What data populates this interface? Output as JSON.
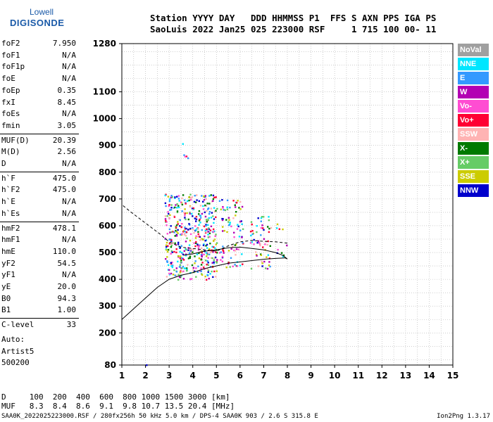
{
  "logo": {
    "line1": "Lowell",
    "line2": "DIGISONDE"
  },
  "header": {
    "line1": "Station YYYY DAY   DDD HHMMSS P1  FFS S AXN PPS IGA PS",
    "line2": "SaoLuis 2022 Jan25 025 223000 RSF     1 715 100 00- 11"
  },
  "params": [
    {
      "k": "foF2",
      "v": "7.950"
    },
    {
      "k": "foF1",
      "v": "N/A"
    },
    {
      "k": "foF1p",
      "v": "N/A"
    },
    {
      "k": "foE",
      "v": "N/A"
    },
    {
      "k": "foEp",
      "v": "0.35"
    },
    {
      "k": "fxI",
      "v": "8.45"
    },
    {
      "k": "foEs",
      "v": "N/A"
    },
    {
      "k": "fmin",
      "v": "3.05"
    },
    {
      "k": "MUF(D)",
      "v": "20.39"
    },
    {
      "k": "M(D)",
      "v": "2.56"
    },
    {
      "k": "D",
      "v": "N/A"
    },
    {
      "k": "h`F",
      "v": "475.0"
    },
    {
      "k": "h`F2",
      "v": "475.0"
    },
    {
      "k": "h`E",
      "v": "N/A"
    },
    {
      "k": "h`Es",
      "v": "N/A"
    },
    {
      "k": "hmF2",
      "v": "478.1"
    },
    {
      "k": "hmF1",
      "v": "N/A"
    },
    {
      "k": "hmE",
      "v": "110.0"
    },
    {
      "k": "yF2",
      "v": "54.5"
    },
    {
      "k": "yF1",
      "v": "N/A"
    },
    {
      "k": "yE",
      "v": "20.0"
    },
    {
      "k": "B0",
      "v": "94.3"
    },
    {
      "k": "B1",
      "v": "1.00"
    },
    {
      "k": "C-level",
      "v": "33"
    }
  ],
  "auto": {
    "line1": "Auto:",
    "line2": "Artist5",
    "line3": "500200"
  },
  "legend": [
    {
      "label": "NoVal",
      "color": "#a0a0a0"
    },
    {
      "label": "NNE",
      "color": "#00e6ff"
    },
    {
      "label": "E",
      "color": "#3399ff"
    },
    {
      "label": "W",
      "color": "#b300b3"
    },
    {
      "label": "Vo-",
      "color": "#ff4dd2"
    },
    {
      "label": "Vo+",
      "color": "#ff0033"
    },
    {
      "label": "SSW",
      "color": "#ffb3b3"
    },
    {
      "label": "X-",
      "color": "#007a00"
    },
    {
      "label": "X+",
      "color": "#66cc66"
    },
    {
      "label": "SSE",
      "color": "#cccc00"
    },
    {
      "label": "NNW",
      "color": "#0000cc"
    }
  ],
  "dmuf": {
    "line1": "D     100  200  400  600  800 1000 1500 3000 [km]",
    "line2": "MUF   8.3  8.4  8.6  9.1  9.8 10.7 13.5 20.4 [MHz]"
  },
  "footer": {
    "left": "SAA0K_2022025223000.RSF / 280fx256h 50 kHz 5.0 km / DPS-4 SAA0K 903 / 2.6 S 315.8 E",
    "right": "Ion2Png 1.3.17"
  },
  "chart_data": {
    "type": "scatter",
    "xlim": [
      1,
      15
    ],
    "ylim": [
      80,
      1280
    ],
    "xticks": [
      1,
      2,
      3,
      4,
      5,
      6,
      7,
      8,
      9,
      10,
      11,
      12,
      13,
      14,
      15
    ],
    "yticks": [
      80,
      200,
      300,
      400,
      500,
      600,
      700,
      800,
      900,
      1000,
      1100,
      1280
    ],
    "grid": true,
    "curves": [
      {
        "style": "dashed",
        "points": [
          [
            1.05,
            675
          ],
          [
            1.4,
            650
          ],
          [
            2.0,
            610
          ],
          [
            2.6,
            570
          ],
          [
            3.0,
            540
          ],
          [
            3.5,
            520
          ],
          [
            4.0,
            515
          ],
          [
            4.5,
            510
          ],
          [
            5.0,
            505
          ],
          [
            5.5,
            525
          ],
          [
            6.0,
            540
          ],
          [
            6.5,
            545
          ],
          [
            7.0,
            542
          ],
          [
            7.5,
            540
          ],
          [
            8.0,
            535
          ]
        ]
      },
      {
        "style": "solid",
        "points": [
          [
            1.0,
            250
          ],
          [
            1.5,
            290
          ],
          [
            2.0,
            330
          ],
          [
            2.5,
            370
          ],
          [
            3.0,
            400
          ],
          [
            3.5,
            415
          ],
          [
            4.0,
            425
          ],
          [
            4.5,
            440
          ],
          [
            5.0,
            450
          ],
          [
            5.5,
            460
          ],
          [
            6.0,
            465
          ],
          [
            6.5,
            470
          ],
          [
            7.0,
            475
          ],
          [
            7.5,
            478
          ],
          [
            7.9,
            480
          ],
          [
            8.0,
            476
          ],
          [
            7.8,
            490
          ],
          [
            7.5,
            500
          ],
          [
            7.0,
            510
          ],
          [
            6.5,
            515
          ],
          [
            6.0,
            520
          ],
          [
            5.5,
            518
          ],
          [
            5.0,
            510
          ],
          [
            4.5,
            505
          ],
          [
            4.0,
            495
          ],
          [
            3.6,
            490
          ]
        ]
      }
    ],
    "echo_regions": [
      {
        "f": [
          2.8,
          5.0
        ],
        "h": [
          400,
          720
        ],
        "density": "high"
      },
      {
        "f": [
          5.1,
          6.1
        ],
        "h": [
          440,
          700
        ],
        "density": "medium"
      },
      {
        "f": [
          6.4,
          7.3
        ],
        "h": [
          440,
          640
        ],
        "density": "medium"
      },
      {
        "f": [
          7.5,
          8.0
        ],
        "h": [
          480,
          620
        ],
        "density": "low"
      },
      {
        "f": [
          3.5,
          3.8
        ],
        "h": [
          820,
          940
        ],
        "density": "low"
      },
      {
        "f": [
          1.7,
          2.1
        ],
        "h": [
          80,
          95
        ],
        "density": "low"
      }
    ]
  }
}
